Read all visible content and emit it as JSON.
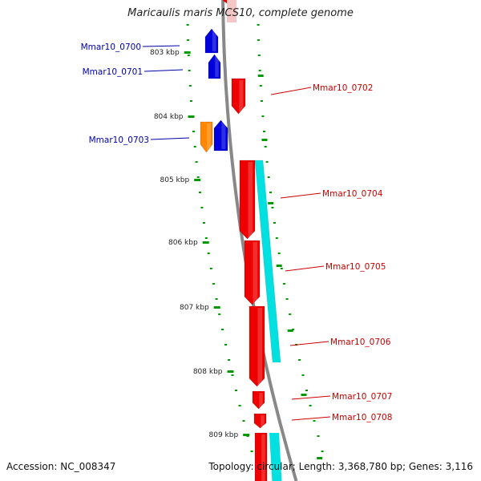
{
  "title": "Maricaulis maris MCS10, complete genome",
  "footer": {
    "accession": "Accession: NC_008347",
    "summary": "Topology: circular; Length: 3,368,780 bp; Genes: 3,116"
  },
  "colors": {
    "forward_gene": "#ee0000",
    "reverse_gene": "#0000dd",
    "orange_gene": "#ff8800",
    "cds_track": "#00e0e0",
    "backbone": "#888888",
    "ticks": "#009900",
    "forward_label": "#cc0000",
    "reverse_label": "#0000aa"
  },
  "scale_labels": [
    {
      "text": "803 kbp",
      "kbp": 803
    },
    {
      "text": "804 kbp",
      "kbp": 804
    },
    {
      "text": "805 kbp",
      "kbp": 805
    },
    {
      "text": "806 kbp",
      "kbp": 806
    },
    {
      "text": "807 kbp",
      "kbp": 807
    },
    {
      "text": "808 kbp",
      "kbp": 808
    },
    {
      "text": "809 kbp",
      "kbp": 809
    }
  ],
  "genes": [
    {
      "label": "Mmar10_0700",
      "strand": "reverse",
      "color_key": "reverse_gene"
    },
    {
      "label": "Mmar10_0701",
      "strand": "reverse",
      "color_key": "reverse_gene"
    },
    {
      "label": "Mmar10_0702",
      "strand": "forward",
      "color_key": "forward_gene"
    },
    {
      "label": "Mmar10_0703",
      "strand": "reverse",
      "color_key": "reverse_gene"
    },
    {
      "label": "",
      "strand": "reverse",
      "color_key": "orange_gene"
    },
    {
      "label": "Mmar10_0704",
      "strand": "forward",
      "color_key": "forward_gene"
    },
    {
      "label": "Mmar10_0705",
      "strand": "forward",
      "color_key": "forward_gene"
    },
    {
      "label": "Mmar10_0706",
      "strand": "forward",
      "color_key": "forward_gene"
    },
    {
      "label": "Mmar10_0707",
      "strand": "forward",
      "color_key": "forward_gene"
    },
    {
      "label": "Mmar10_0708",
      "strand": "forward",
      "color_key": "forward_gene"
    }
  ]
}
